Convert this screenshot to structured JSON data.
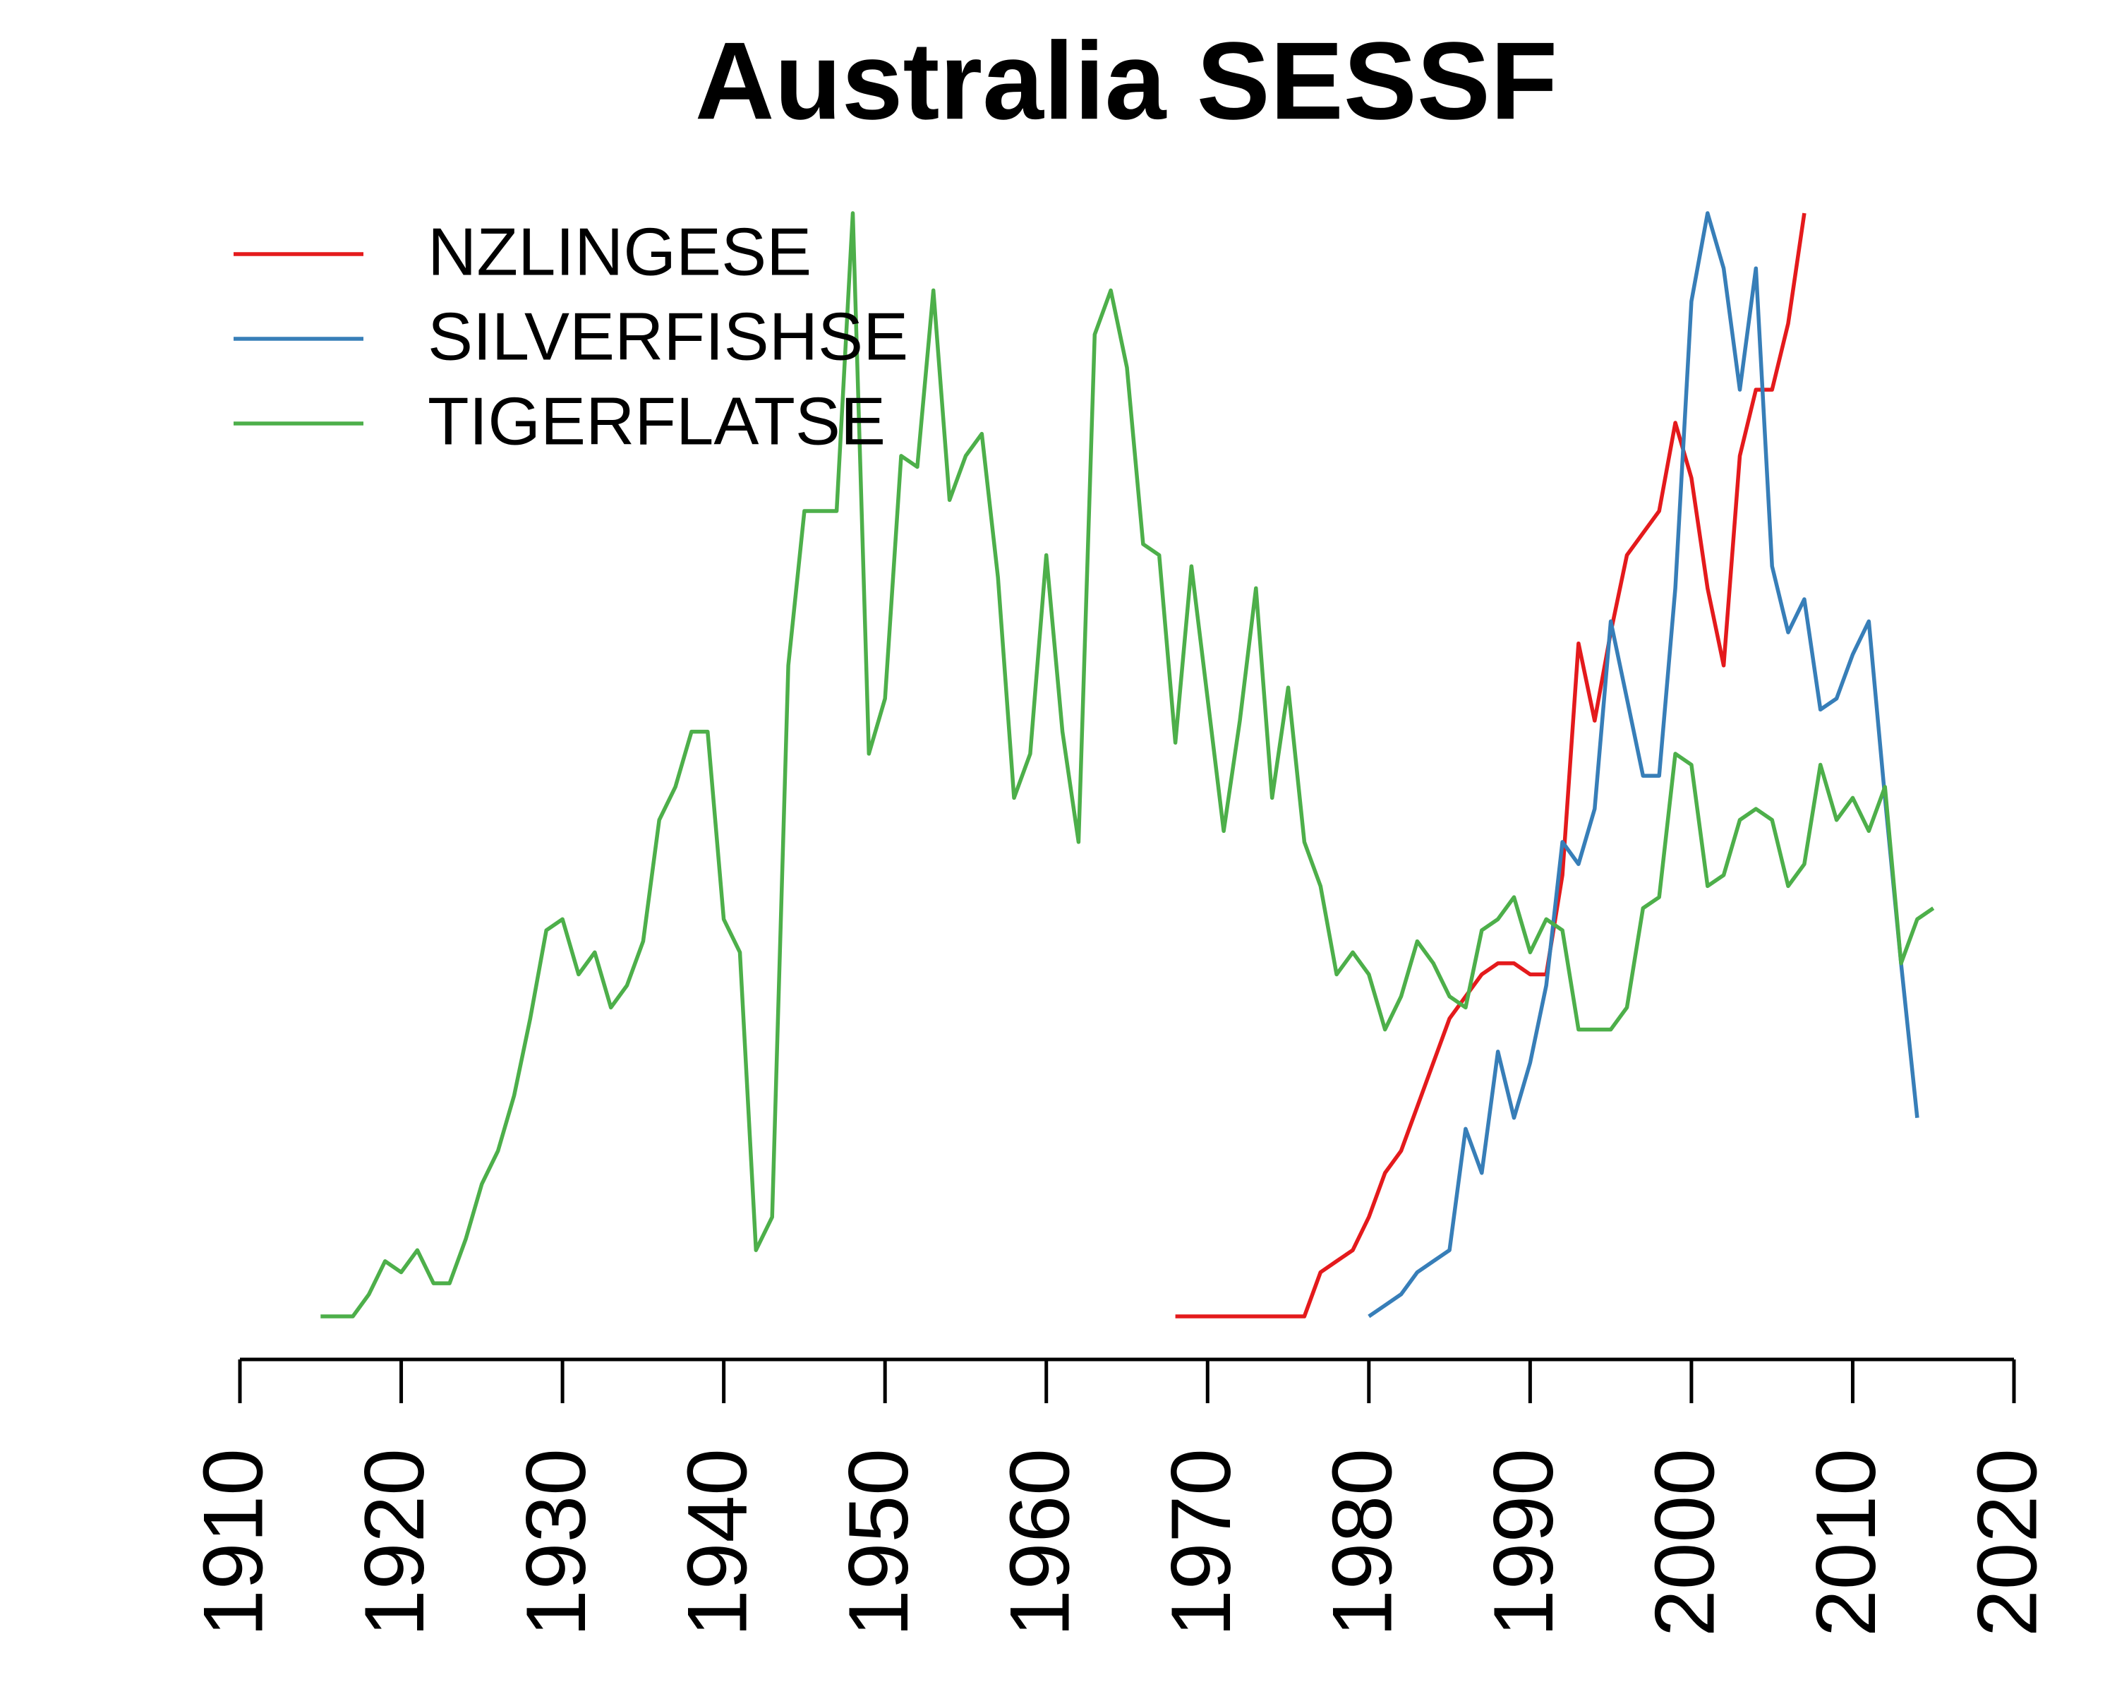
{
  "chart_data": {
    "type": "line",
    "title": "Australia SESSF",
    "x": [
      1915,
      1916,
      1917,
      1918,
      1919,
      1920,
      1921,
      1922,
      1923,
      1924,
      1925,
      1926,
      1927,
      1928,
      1929,
      1930,
      1931,
      1932,
      1933,
      1934,
      1935,
      1936,
      1937,
      1938,
      1939,
      1940,
      1941,
      1942,
      1943,
      1944,
      1945,
      1946,
      1947,
      1948,
      1949,
      1950,
      1951,
      1952,
      1953,
      1954,
      1955,
      1956,
      1957,
      1958,
      1959,
      1960,
      1961,
      1962,
      1963,
      1964,
      1965,
      1966,
      1967,
      1968,
      1969,
      1970,
      1971,
      1972,
      1973,
      1974,
      1975,
      1976,
      1977,
      1978,
      1979,
      1980,
      1981,
      1982,
      1983,
      1984,
      1985,
      1986,
      1987,
      1988,
      1989,
      1990,
      1991,
      1992,
      1993,
      1994,
      1995,
      1996,
      1997,
      1998,
      1999,
      2000,
      2001,
      2002,
      2003,
      2004,
      2005,
      2006,
      2007,
      2008,
      2009,
      2010,
      2011,
      2012,
      2013,
      2014,
      2015
    ],
    "series": [
      {
        "name": "NZLINGESE",
        "color": "#e41a1c",
        "values": [
          null,
          null,
          null,
          null,
          null,
          null,
          null,
          null,
          null,
          null,
          null,
          null,
          null,
          null,
          null,
          null,
          null,
          null,
          null,
          null,
          null,
          null,
          null,
          null,
          null,
          null,
          null,
          null,
          null,
          null,
          null,
          null,
          null,
          null,
          null,
          null,
          null,
          null,
          null,
          null,
          null,
          null,
          null,
          null,
          null,
          null,
          null,
          null,
          null,
          null,
          null,
          null,
          null,
          0,
          0,
          0,
          0,
          0,
          0,
          0,
          0,
          0,
          0.04,
          0.05,
          0.06,
          0.09,
          0.13,
          0.15,
          0.19,
          0.23,
          0.27,
          0.29,
          0.31,
          0.32,
          0.32,
          0.31,
          0.31,
          0.4,
          0.61,
          0.54,
          0.62,
          0.69,
          0.71,
          0.73,
          0.81,
          0.76,
          0.66,
          0.59,
          0.78,
          0.84,
          0.84,
          0.9,
          1,
          null,
          null,
          null,
          null,
          null,
          null,
          null,
          null
        ]
      },
      {
        "name": "SILVERFISHSE",
        "color": "#377eb8",
        "values": [
          null,
          null,
          null,
          null,
          null,
          null,
          null,
          null,
          null,
          null,
          null,
          null,
          null,
          null,
          null,
          null,
          null,
          null,
          null,
          null,
          null,
          null,
          null,
          null,
          null,
          null,
          null,
          null,
          null,
          null,
          null,
          null,
          null,
          null,
          null,
          null,
          null,
          null,
          null,
          null,
          null,
          null,
          null,
          null,
          null,
          null,
          null,
          null,
          null,
          null,
          null,
          null,
          null,
          null,
          null,
          null,
          null,
          null,
          null,
          null,
          null,
          null,
          null,
          null,
          null,
          0,
          0.01,
          0.02,
          0.04,
          0.05,
          0.06,
          0.17,
          0.13,
          0.24,
          0.18,
          0.23,
          0.3,
          0.43,
          0.41,
          0.46,
          0.63,
          0.56,
          0.49,
          0.49,
          0.66,
          0.92,
          1,
          0.95,
          0.84,
          0.95,
          0.68,
          0.62,
          0.65,
          0.55,
          0.56,
          0.6,
          0.63,
          0.47,
          0.32,
          0.18,
          null
        ]
      },
      {
        "name": "TIGERFLATSE",
        "color": "#4daf4a",
        "values": [
          0,
          0,
          0,
          0.02,
          0.05,
          0.04,
          0.06,
          0.03,
          0.03,
          0.07,
          0.12,
          0.15,
          0.2,
          0.27,
          0.35,
          0.36,
          0.31,
          0.33,
          0.28,
          0.3,
          0.34,
          0.45,
          0.48,
          0.53,
          0.53,
          0.36,
          0.33,
          0.06,
          0.09,
          0.59,
          0.73,
          0.73,
          0.73,
          1,
          0.51,
          0.56,
          0.78,
          0.77,
          0.93,
          0.74,
          0.78,
          0.8,
          0.67,
          0.47,
          0.51,
          0.69,
          0.53,
          0.43,
          0.89,
          0.93,
          0.86,
          0.7,
          0.69,
          0.52,
          0.68,
          0.56,
          0.44,
          0.54,
          0.66,
          0.47,
          0.57,
          0.43,
          0.39,
          0.31,
          0.33,
          0.31,
          0.26,
          0.29,
          0.34,
          0.32,
          0.29,
          0.28,
          0.35,
          0.36,
          0.38,
          0.33,
          0.36,
          0.35,
          0.26,
          0.26,
          0.26,
          0.28,
          0.37,
          0.38,
          0.51,
          0.5,
          0.39,
          0.4,
          0.45,
          0.46,
          0.45,
          0.39,
          0.41,
          0.5,
          0.45,
          0.47,
          0.44,
          0.48,
          0.32,
          0.36,
          0.37
        ]
      }
    ],
    "xlim": [
      1910,
      2020
    ],
    "xticks": [
      1910,
      1920,
      1930,
      1940,
      1950,
      1960,
      1970,
      1980,
      1990,
      2000,
      2010,
      2020
    ],
    "ylim": [
      0,
      1
    ],
    "legend": "top-left"
  }
}
